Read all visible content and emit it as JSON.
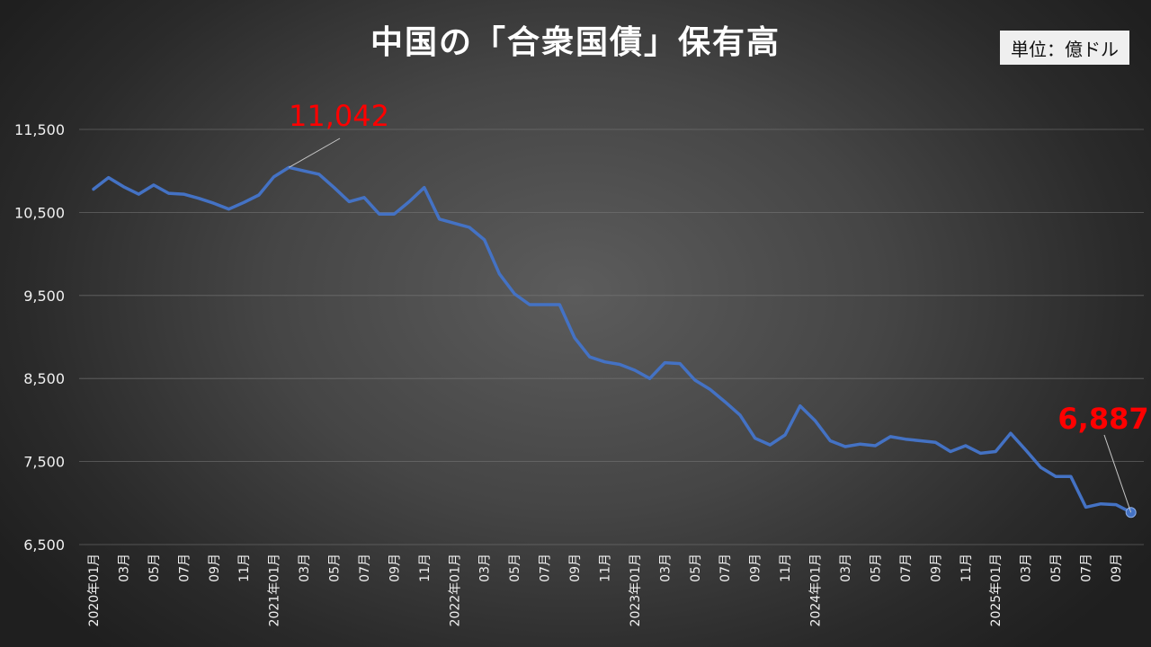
{
  "chart_data": {
    "type": "line",
    "title": "中国の「合衆国債」保有高",
    "unit_label": "単位：億ドル",
    "ylim": [
      6500,
      11800
    ],
    "yticks": [
      6500,
      7500,
      8500,
      9500,
      10500,
      11500
    ],
    "ytick_labels": [
      "6,500",
      "7,500",
      "8,500",
      "9,500",
      "10,500",
      "11,500"
    ],
    "grid": true,
    "legend": "none",
    "line_color": "#4472c4",
    "annotation_color": "#ff0000",
    "x": [
      "2020年01月",
      "02月",
      "03月",
      "04月",
      "05月",
      "06月",
      "07月",
      "08月",
      "09月",
      "10月",
      "11月",
      "12月",
      "2021年01月",
      "02月",
      "03月",
      "04月",
      "05月",
      "06月",
      "07月",
      "08月",
      "09月",
      "10月",
      "11月",
      "12月",
      "2022年01月",
      "02月",
      "03月",
      "04月",
      "05月",
      "06月",
      "07月",
      "08月",
      "09月",
      "10月",
      "11月",
      "12月",
      "2023年01月",
      "02月",
      "03月",
      "04月",
      "05月",
      "06月",
      "07月",
      "08月",
      "09月",
      "10月",
      "11月",
      "12月",
      "2024年01月",
      "02月",
      "03月",
      "04月",
      "05月",
      "06月",
      "07月",
      "08月",
      "09月",
      "10月",
      "11月",
      "12月",
      "2025年01月",
      "02月",
      "03月",
      "04月",
      "05月",
      "06月",
      "07月",
      "08月",
      "09月",
      "10月"
    ],
    "x_tick_labels": [
      "2020年01月",
      "",
      "03月",
      "",
      "05月",
      "",
      "07月",
      "",
      "09月",
      "",
      "11月",
      "",
      "2021年01月",
      "",
      "03月",
      "",
      "05月",
      "",
      "07月",
      "",
      "09月",
      "",
      "11月",
      "",
      "2022年01月",
      "",
      "03月",
      "",
      "05月",
      "",
      "07月",
      "",
      "09月",
      "",
      "11月",
      "",
      "2023年01月",
      "",
      "03月",
      "",
      "05月",
      "",
      "07月",
      "",
      "09月",
      "",
      "11月",
      "",
      "2024年01月",
      "",
      "03月",
      "",
      "05月",
      "",
      "07月",
      "",
      "09月",
      "",
      "11月",
      "",
      "2025年01月",
      "",
      "03月",
      "",
      "05月",
      "",
      "07月",
      "",
      "09月",
      ""
    ],
    "values": [
      10780,
      10920,
      10810,
      10720,
      10830,
      10730,
      10720,
      10670,
      10610,
      10540,
      10620,
      10710,
      10930,
      11042,
      11000,
      10960,
      10800,
      10630,
      10680,
      10480,
      10480,
      10630,
      10800,
      10420,
      10370,
      10320,
      10170,
      9760,
      9520,
      9390,
      9390,
      9390,
      8990,
      8760,
      8700,
      8670,
      8600,
      8500,
      8690,
      8680,
      8480,
      8370,
      8220,
      8060,
      7780,
      7700,
      7820,
      8170,
      7990,
      7750,
      7680,
      7710,
      7690,
      7800,
      7770,
      7750,
      7730,
      7620,
      7690,
      7600,
      7620,
      7840,
      7640,
      7430,
      7320,
      7320,
      6950,
      6990,
      6980,
      6887
    ],
    "annotations": [
      {
        "label": "11,042",
        "index": 13,
        "value": 11042
      },
      {
        "label": "6,887",
        "index": 69,
        "value": 6887
      }
    ]
  }
}
